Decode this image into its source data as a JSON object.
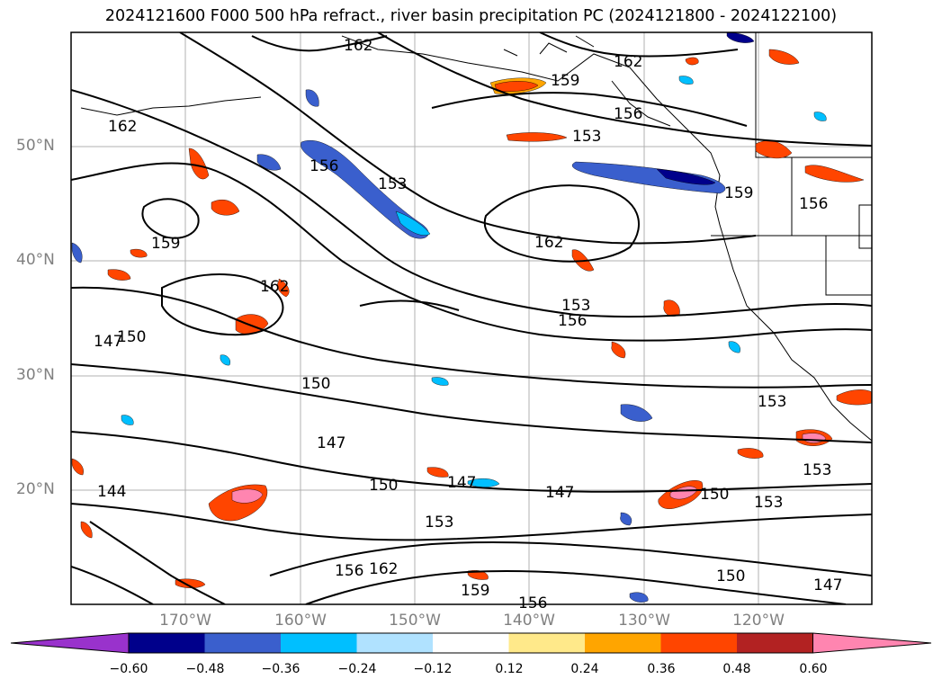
{
  "title": "2024121600 F000 500 hPa refract., river basin precipitation PC (2024121800 - 2024122100)",
  "lat_labels": [
    "50°N",
    "40°N",
    "30°N",
    "20°N"
  ],
  "lon_labels": [
    "170°W",
    "160°W",
    "150°W",
    "140°W",
    "130°W",
    "120°W"
  ],
  "contour_labels": [
    "162",
    "162",
    "159",
    "156",
    "162",
    "153",
    "156",
    "153",
    "159",
    "156",
    "159",
    "162",
    "162",
    "153",
    "156",
    "147",
    "150",
    "150",
    "147",
    "150",
    "147",
    "147",
    "153",
    "144",
    "153",
    "153",
    "150",
    "153",
    "162",
    "156",
    "159",
    "156",
    "150",
    "147"
  ],
  "colorbar": {
    "ticks": [
      "−0.60",
      "−0.48",
      "−0.36",
      "−0.24",
      "−0.12",
      "0.12",
      "0.24",
      "0.36",
      "0.48",
      "0.60"
    ],
    "colors": [
      "#9932cc",
      "#00008b",
      "#3a5fcd",
      "#00bfff",
      "#b0e2ff",
      "#ffffff",
      "#ffe98a",
      "#ffa500",
      "#ff4500",
      "#b22222",
      "#ff85b0"
    ]
  }
}
